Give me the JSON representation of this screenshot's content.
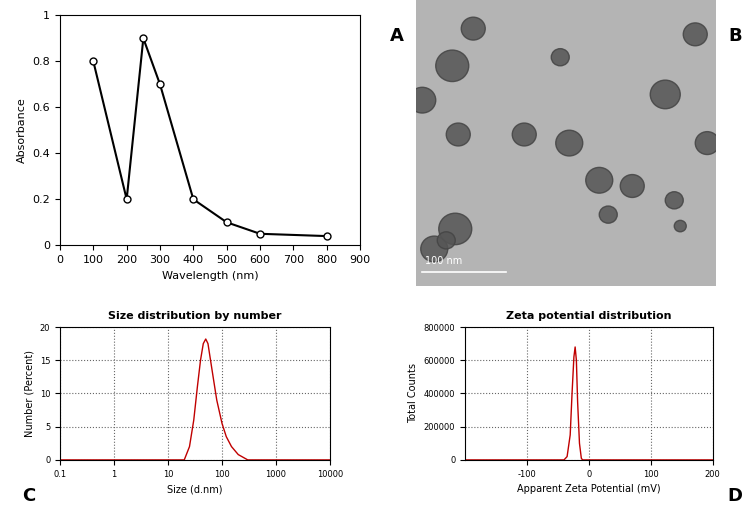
{
  "chart_data": [
    {
      "type": "line",
      "panel": "A",
      "x_label": "Wavelength (nm)",
      "y_label": "Absorbance",
      "x": [
        100,
        200,
        250,
        300,
        400,
        500,
        600,
        800
      ],
      "values": [
        0.8,
        0.2,
        0.9,
        0.7,
        0.2,
        0.1,
        0.05,
        0.04
      ],
      "color": "#000000",
      "marker": "o",
      "line_style": "solid",
      "xlim": [
        0,
        900
      ],
      "xticks": [
        0,
        100,
        200,
        300,
        400,
        500,
        600,
        700,
        800,
        900
      ],
      "ylim": [
        0,
        1
      ],
      "yticks": [
        0,
        0.2,
        0.4,
        0.6,
        0.8,
        1
      ],
      "grid": false
    },
    {
      "type": "image",
      "panel": "B",
      "scale_bar": "100 nm"
    },
    {
      "type": "line",
      "panel": "C",
      "title": "Size distribution by number",
      "x_label": "Size (d.nm)",
      "y_label": "Number (Percent)",
      "x": [
        0.1,
        20,
        25,
        30,
        35,
        40,
        45,
        50,
        55,
        60,
        70,
        80,
        100,
        120,
        150,
        200,
        300,
        10000
      ],
      "values": [
        0,
        0,
        2,
        6,
        11,
        15,
        17.5,
        18.2,
        17.5,
        15.5,
        12,
        9,
        5.5,
        3.5,
        2,
        0.8,
        0,
        0
      ],
      "color": "#c00000",
      "line_style": "solid",
      "log": "x",
      "xlim": [
        0.1,
        10000
      ],
      "xticks": [
        0.1,
        1,
        10,
        100,
        1000,
        10000
      ],
      "ylim": [
        0,
        20
      ],
      "yticks": [
        0,
        5,
        10,
        15,
        20
      ],
      "grid": true
    },
    {
      "type": "line",
      "panel": "D",
      "title": "Zeta potential distribution",
      "x_label": "Apparent Zeta Potential (mV)",
      "y_label": "Total Counts",
      "x": [
        -200,
        -40,
        -35,
        -30,
        -27,
        -24,
        -22,
        -20,
        -18,
        -15,
        -12,
        -10,
        200
      ],
      "values": [
        0,
        0,
        20000,
        150000,
        400000,
        620000,
        680000,
        600000,
        350000,
        100000,
        10000,
        0,
        0
      ],
      "color": "#c00000",
      "line_style": "solid",
      "xlim": [
        -200,
        200
      ],
      "xticks": [
        -100,
        0,
        100,
        200
      ],
      "ylim": [
        0,
        800000
      ],
      "yticks": [
        0,
        200000,
        400000,
        600000,
        800000
      ],
      "grid": true
    }
  ]
}
